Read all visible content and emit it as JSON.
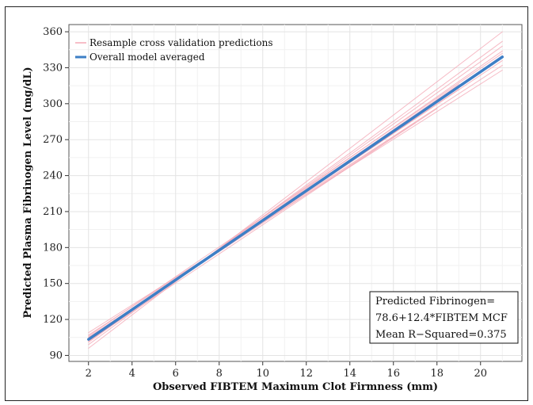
{
  "chart_data": {
    "type": "line",
    "xlabel": "Observed FIBTEM Maximum Clot Firmness (mm)",
    "ylabel": "Predicted Plasma Fibrinogen Level (mg/dL)",
    "xlim": [
      1.1,
      21.9
    ],
    "ylim": [
      85,
      366
    ],
    "xticks": [
      2,
      4,
      6,
      8,
      10,
      12,
      14,
      16,
      18,
      20
    ],
    "yticks": [
      90,
      120,
      150,
      180,
      210,
      240,
      270,
      300,
      330,
      360
    ],
    "grid": true,
    "legend_position": "top-left",
    "legend": [
      {
        "label": "Resample cross validation predictions",
        "color": "#f4a9b6"
      },
      {
        "label": "Overall model averaged",
        "color": "#3d7fc6"
      }
    ],
    "series": [
      {
        "name": "Overall model averaged",
        "color": "#3d7fc6",
        "role": "main",
        "x": [
          2,
          21
        ],
        "y": [
          103.4,
          339.0
        ]
      },
      {
        "name": "Resample cross validation predictions",
        "color": "#f4a9b6",
        "role": "resample",
        "x": [
          2,
          21
        ],
        "y": [
          96,
          360
        ]
      },
      {
        "name": "Resample cross validation predictions",
        "color": "#f4a9b6",
        "role": "resample",
        "x": [
          2,
          21
        ],
        "y": [
          99,
          352
        ]
      },
      {
        "name": "Resample cross validation predictions",
        "color": "#f4a9b6",
        "role": "resample",
        "x": [
          2,
          21
        ],
        "y": [
          101,
          348
        ]
      },
      {
        "name": "Resample cross validation predictions",
        "color": "#f4a9b6",
        "role": "resample",
        "x": [
          2,
          21
        ],
        "y": [
          102,
          344
        ]
      },
      {
        "name": "Resample cross validation predictions",
        "color": "#f4a9b6",
        "role": "resample",
        "x": [
          2,
          21
        ],
        "y": [
          104,
          340
        ]
      },
      {
        "name": "Resample cross validation predictions",
        "color": "#f4a9b6",
        "role": "resample",
        "x": [
          2,
          21
        ],
        "y": [
          105,
          336
        ]
      },
      {
        "name": "Resample cross validation predictions",
        "color": "#f4a9b6",
        "role": "resample",
        "x": [
          2,
          21
        ],
        "y": [
          107,
          332
        ]
      },
      {
        "name": "Resample cross validation predictions",
        "color": "#f4a9b6",
        "role": "resample",
        "x": [
          2,
          21
        ],
        "y": [
          109,
          328
        ]
      },
      {
        "name": "Resample cross validation predictions",
        "color": "#f4a9b6",
        "role": "resample",
        "x": [
          2,
          21
        ],
        "y": [
          106,
          342
        ]
      },
      {
        "name": "Resample cross validation predictions",
        "color": "#f4a9b6",
        "role": "resample",
        "x": [
          2,
          19
        ],
        "y": [
          103,
          316
        ]
      },
      {
        "name": "Resample cross validation predictions",
        "color": "#f4a9b6",
        "role": "resample",
        "x": [
          2,
          19
        ],
        "y": [
          104,
          312
        ]
      },
      {
        "name": "Resample cross validation predictions",
        "color": "#f4a9b6",
        "role": "resample",
        "x": [
          2,
          18
        ],
        "y": [
          102,
          296
        ]
      },
      {
        "name": "Resample cross validation predictions",
        "color": "#f4a9b6",
        "role": "resample",
        "x": [
          2,
          17
        ],
        "y": [
          105,
          284
        ]
      }
    ],
    "annotation": {
      "lines": [
        "Predicted Fibrinogen=",
        "78.6+12.4*FIBTEM MCF",
        "Mean R−Squared=0.375"
      ],
      "position": "bottom-right"
    }
  }
}
